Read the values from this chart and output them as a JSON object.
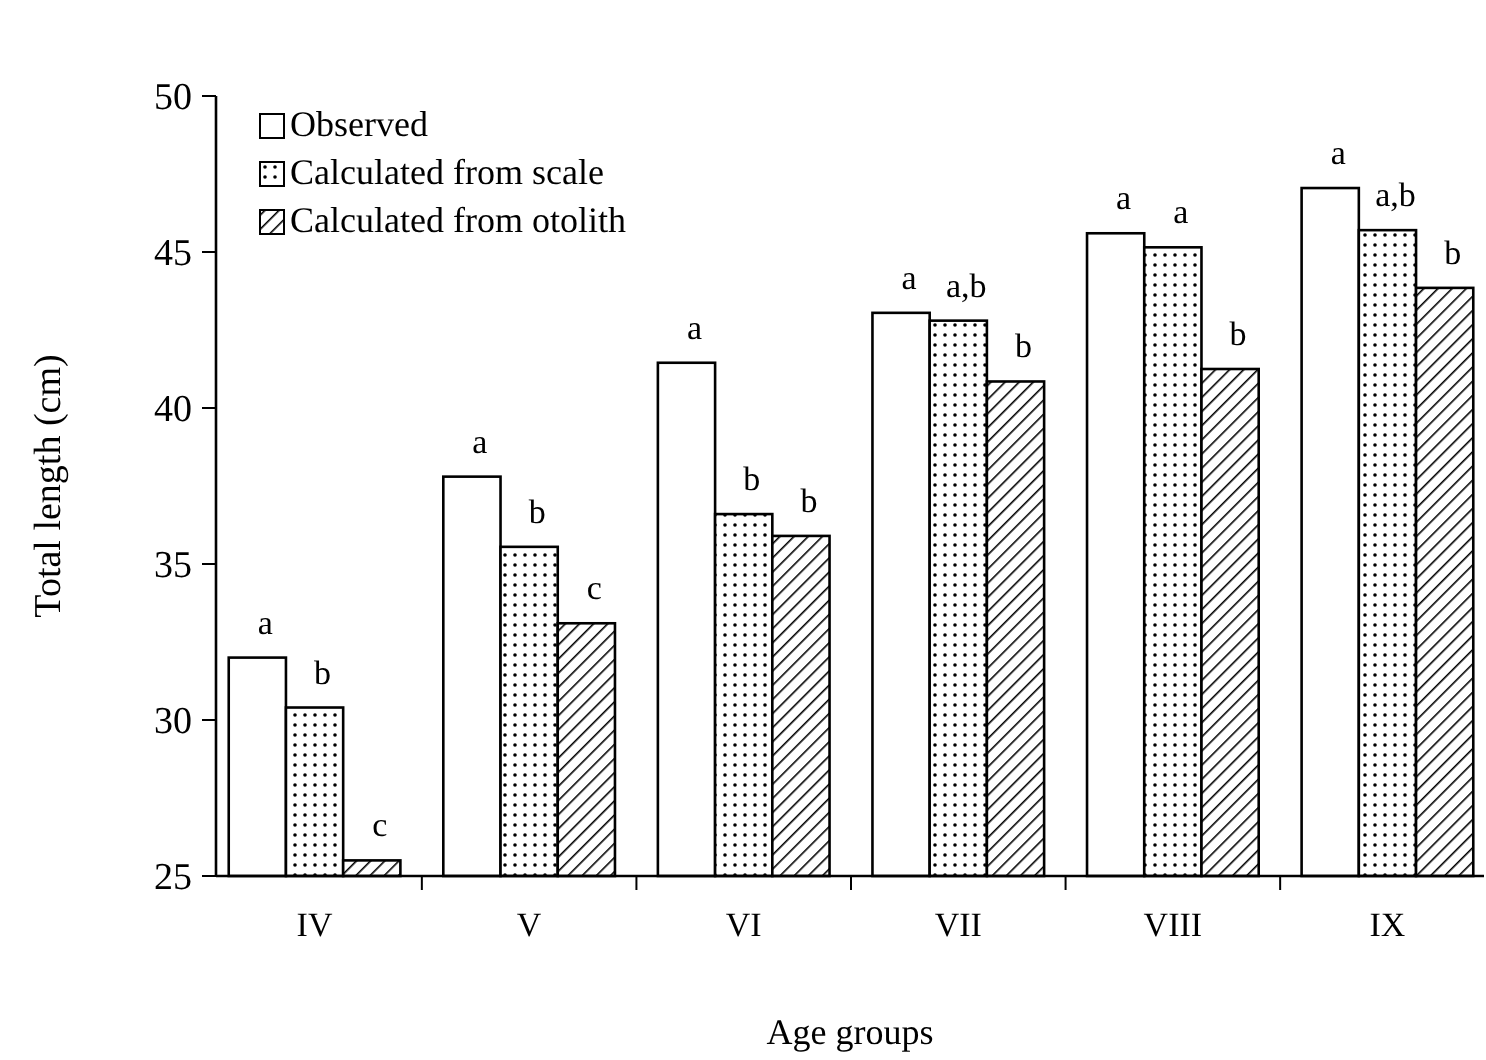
{
  "chart_data": {
    "type": "bar",
    "xlabel": "Age groups",
    "ylabel": "Total length (cm)",
    "categories": [
      "IV",
      "V",
      "VI",
      "VII",
      "VIII",
      "IX"
    ],
    "series": [
      {
        "name": "Observed",
        "color": "#ffffff",
        "values": [
          32.0,
          37.8,
          41.45,
          43.05,
          45.6,
          47.05
        ],
        "value_labels": [
          "a",
          "a",
          "a",
          "a",
          "a",
          "a"
        ]
      },
      {
        "name": "Calculated from scale",
        "color": "#000000",
        "values": [
          30.4,
          35.55,
          36.6,
          42.8,
          45.15,
          45.7
        ],
        "value_labels": [
          "b",
          "b",
          "b",
          "a,b",
          "a",
          "a,b"
        ]
      },
      {
        "name": "Calculated from otolith",
        "color": "#000000",
        "values": [
          25.5,
          33.1,
          35.9,
          40.85,
          41.25,
          43.85
        ],
        "value_labels": [
          "c",
          "c",
          "b",
          "b",
          "b",
          "b"
        ]
      }
    ],
    "ylim": [
      25,
      50
    ],
    "yticks": [
      25,
      30,
      35,
      40,
      45,
      50
    ],
    "grid": false,
    "legend": "top left"
  }
}
